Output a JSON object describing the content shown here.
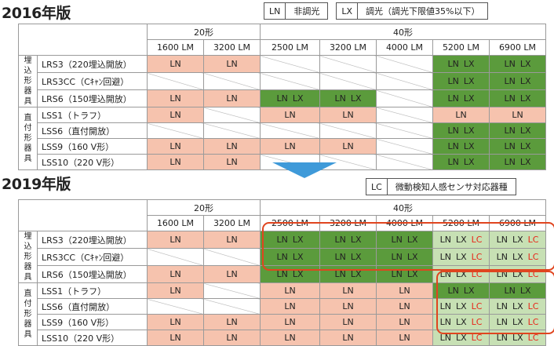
{
  "v2016": {
    "title": "2016年版",
    "legend": [
      {
        "code": "LN",
        "text": "非調光"
      },
      {
        "code": "LX",
        "text": "調光（調光下限値35%以下）"
      }
    ]
  },
  "v2019": {
    "title": "2019年版",
    "legend": [
      {
        "code": "LC",
        "text": "微動検知人感センサ対応器種"
      }
    ]
  },
  "header": {
    "group20": "20形",
    "group40": "40形",
    "lumens": [
      "1600 LM",
      "3200 LM",
      "2500 LM",
      "3200 LM",
      "4000 LM",
      "5200 LM",
      "6900 LM"
    ]
  },
  "groups": {
    "embedded": "埋込形器具",
    "direct": "直付形器具"
  },
  "rows": [
    "LRS3（220埋込開放）",
    "LRS3CC（Cｷｬﾝ回避）",
    "LRS6（150埋込開放）",
    "LSS1（トラフ）",
    "LSS6（直付開放）",
    "LSS9（160 V形）",
    "LSS10（220 V形）"
  ],
  "labels": {
    "ln": "LN",
    "lx": "LX",
    "lc": "LC"
  },
  "colors": {
    "salmon": "#f6c3ae",
    "dark_green": "#5b9b3c",
    "light_green": "#c7e0b4",
    "arrow": "#3f9ad9",
    "highlight": "#e0451f",
    "lc_text": "#e8261a"
  },
  "table2016": [
    [
      "LN",
      "LN",
      "",
      "",
      "",
      "LN LX",
      "LN LX"
    ],
    [
      "",
      "",
      "",
      "",
      "",
      "LN LX",
      "LN LX"
    ],
    [
      "LN",
      "LN",
      "LN LX",
      "LN LX",
      "",
      "LN LX",
      "LN LX"
    ],
    [
      "LN",
      "",
      "LN",
      "LN",
      "",
      "LN",
      "LN"
    ],
    [
      "",
      "",
      "",
      "",
      "",
      "LN LX",
      "LN LX"
    ],
    [
      "LN",
      "LN",
      "LN",
      "LN",
      "",
      "LN LX",
      "LN LX"
    ],
    [
      "LN",
      "LN",
      "",
      "",
      "",
      "LN LX",
      "LN LX"
    ]
  ],
  "table2019": [
    [
      "LN",
      "LN",
      "LN LX",
      "LN LX",
      "LN LX",
      "LN LX LC",
      "LN LX LC"
    ],
    [
      "",
      "",
      "LN LX",
      "LN LX",
      "LN LX",
      "LN LX LC",
      "LN LX LC"
    ],
    [
      "LN",
      "LN",
      "LN LX",
      "LN LX",
      "LN LX",
      "LN LX LC",
      "LN LX LC"
    ],
    [
      "LN",
      "",
      "LN",
      "LN",
      "LN",
      "LN LX",
      "LN LX"
    ],
    [
      "",
      "",
      "LN",
      "LN",
      "LN",
      "LN LX LC",
      "LN LX LC"
    ],
    [
      "LN",
      "LN",
      "LN",
      "LN",
      "LN",
      "LN LX LC",
      "LN LX LC"
    ],
    [
      "LN",
      "LN",
      "LN",
      "LN",
      "LN",
      "LN LX LC",
      "LN LX LC"
    ]
  ]
}
